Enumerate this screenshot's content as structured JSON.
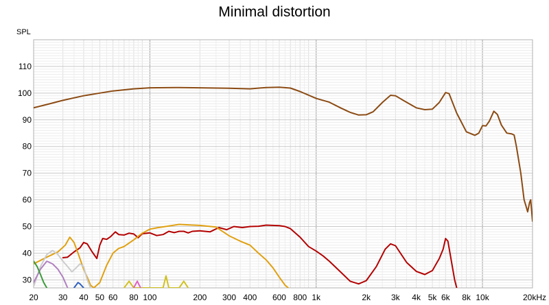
{
  "chart_data": {
    "type": "line",
    "title": "Minimal distortion",
    "ylabel": "SPL",
    "xscale": "log",
    "xlim": [
      20,
      20000
    ],
    "ylim": [
      27,
      120
    ],
    "x_ticks": [
      {
        "v": 20,
        "label": "20"
      },
      {
        "v": 30,
        "label": "30"
      },
      {
        "v": 40,
        "label": "40"
      },
      {
        "v": 50,
        "label": "50"
      },
      {
        "v": 60,
        "label": "60"
      },
      {
        "v": 80,
        "label": "80"
      },
      {
        "v": 100,
        "label": "100"
      },
      {
        "v": 200,
        "label": "200"
      },
      {
        "v": 300,
        "label": "300"
      },
      {
        "v": 400,
        "label": "400"
      },
      {
        "v": 600,
        "label": "600"
      },
      {
        "v": 800,
        "label": "800"
      },
      {
        "v": 1000,
        "label": "1k"
      },
      {
        "v": 2000,
        "label": "2k"
      },
      {
        "v": 3000,
        "label": "3k"
      },
      {
        "v": 4000,
        "label": "4k"
      },
      {
        "v": 5000,
        "label": "5k"
      },
      {
        "v": 6000,
        "label": "6k"
      },
      {
        "v": 8000,
        "label": "8k"
      },
      {
        "v": 10000,
        "label": "10k"
      },
      {
        "v": 20000,
        "label": "20kHz"
      }
    ],
    "y_ticks": [
      30,
      40,
      50,
      60,
      70,
      80,
      90,
      100,
      110
    ],
    "grid": true,
    "series": [
      {
        "color": "#8b4a12",
        "points": [
          [
            20,
            94.5
          ],
          [
            25,
            96
          ],
          [
            30,
            97.3
          ],
          [
            40,
            99
          ],
          [
            50,
            100
          ],
          [
            60,
            100.8
          ],
          [
            80,
            101.6
          ],
          [
            100,
            102
          ],
          [
            150,
            102.1
          ],
          [
            200,
            102
          ],
          [
            300,
            101.8
          ],
          [
            400,
            101.6
          ],
          [
            500,
            102.1
          ],
          [
            600,
            102.2
          ],
          [
            700,
            101.9
          ],
          [
            800,
            100.6
          ],
          [
            1000,
            98
          ],
          [
            1200,
            96.6
          ],
          [
            1400,
            94.5
          ],
          [
            1600,
            92.8
          ],
          [
            1800,
            91.8
          ],
          [
            2000,
            91.9
          ],
          [
            2200,
            93
          ],
          [
            2500,
            96.5
          ],
          [
            2800,
            99.2
          ],
          [
            3000,
            99
          ],
          [
            3400,
            97
          ],
          [
            4000,
            94.5
          ],
          [
            4500,
            93.8
          ],
          [
            5000,
            94
          ],
          [
            5500,
            96.5
          ],
          [
            6000,
            100.2
          ],
          [
            6300,
            99.8
          ],
          [
            7000,
            92.5
          ],
          [
            8000,
            85.5
          ],
          [
            9000,
            84.2
          ],
          [
            9500,
            85
          ],
          [
            10000,
            87.8
          ],
          [
            10500,
            87.7
          ],
          [
            11000,
            89.5
          ],
          [
            11700,
            93.2
          ],
          [
            12300,
            92
          ],
          [
            13000,
            88
          ],
          [
            14000,
            85
          ],
          [
            15000,
            84.7
          ],
          [
            15500,
            84.3
          ],
          [
            16000,
            80
          ],
          [
            17000,
            70
          ],
          [
            17800,
            60
          ],
          [
            18200,
            58
          ],
          [
            18700,
            55.5
          ],
          [
            19200,
            59
          ],
          [
            19500,
            60
          ],
          [
            20000,
            52
          ]
        ]
      },
      {
        "color": "#b30000",
        "points": [
          [
            30,
            38.3
          ],
          [
            32,
            38.5
          ],
          [
            35,
            40.5
          ],
          [
            38,
            42
          ],
          [
            40,
            44
          ],
          [
            42,
            43.5
          ],
          [
            45,
            40.5
          ],
          [
            48,
            38
          ],
          [
            50,
            43
          ],
          [
            52,
            45.5
          ],
          [
            55,
            45.2
          ],
          [
            58,
            46.2
          ],
          [
            62,
            48
          ],
          [
            65,
            47
          ],
          [
            70,
            46.8
          ],
          [
            75,
            47.5
          ],
          [
            80,
            47.2
          ],
          [
            85,
            45.8
          ],
          [
            90,
            47.3
          ],
          [
            100,
            47.6
          ],
          [
            110,
            46.6
          ],
          [
            120,
            47
          ],
          [
            130,
            48.2
          ],
          [
            140,
            47.7
          ],
          [
            150,
            48.2
          ],
          [
            160,
            48.2
          ],
          [
            170,
            47.6
          ],
          [
            180,
            48.2
          ],
          [
            200,
            48.4
          ],
          [
            230,
            48
          ],
          [
            260,
            49.6
          ],
          [
            290,
            48.8
          ],
          [
            320,
            50
          ],
          [
            360,
            49.6
          ],
          [
            400,
            50
          ],
          [
            450,
            50.1
          ],
          [
            500,
            50.5
          ],
          [
            600,
            50.3
          ],
          [
            650,
            50
          ],
          [
            700,
            49.2
          ],
          [
            800,
            46
          ],
          [
            900,
            42.5
          ],
          [
            1000,
            40.8
          ],
          [
            1100,
            39
          ],
          [
            1200,
            37
          ],
          [
            1400,
            33
          ],
          [
            1600,
            29.5
          ],
          [
            1800,
            28.5
          ],
          [
            2000,
            29.7
          ],
          [
            2300,
            35
          ],
          [
            2600,
            41.5
          ],
          [
            2800,
            43.5
          ],
          [
            3000,
            42.8
          ],
          [
            3500,
            36.5
          ],
          [
            4000,
            33.2
          ],
          [
            4500,
            32
          ],
          [
            5000,
            33.5
          ],
          [
            5500,
            38
          ],
          [
            5800,
            41.5
          ],
          [
            6000,
            45.5
          ],
          [
            6200,
            44.5
          ],
          [
            6800,
            30
          ],
          [
            7000,
            27
          ]
        ]
      },
      {
        "color": "#e0a010",
        "points": [
          [
            20,
            36
          ],
          [
            24,
            38.5
          ],
          [
            28,
            40.5
          ],
          [
            31,
            43
          ],
          [
            33,
            46
          ],
          [
            35,
            44
          ],
          [
            37,
            40
          ],
          [
            40,
            34
          ],
          [
            42,
            31
          ],
          [
            44,
            28
          ],
          [
            46,
            27
          ],
          [
            50,
            29
          ],
          [
            55,
            35.5
          ],
          [
            60,
            40
          ],
          [
            65,
            41.8
          ],
          [
            70,
            42.5
          ],
          [
            80,
            45
          ],
          [
            90,
            47.5
          ],
          [
            100,
            49
          ],
          [
            110,
            49.5
          ],
          [
            130,
            50.2
          ],
          [
            150,
            50.8
          ],
          [
            170,
            50.6
          ],
          [
            200,
            50.4
          ],
          [
            250,
            49.8
          ],
          [
            300,
            46.5
          ],
          [
            350,
            44.5
          ],
          [
            400,
            43
          ],
          [
            450,
            40
          ],
          [
            500,
            37.5
          ],
          [
            550,
            34.5
          ],
          [
            600,
            31
          ],
          [
            650,
            28
          ],
          [
            680,
            27
          ]
        ]
      },
      {
        "color": "#cccccc",
        "points": [
          [
            20,
            27.5
          ],
          [
            22,
            35
          ],
          [
            24,
            39.5
          ],
          [
            26,
            41
          ],
          [
            28,
            39.5
          ],
          [
            30,
            37
          ],
          [
            32,
            35
          ],
          [
            34,
            33
          ],
          [
            36,
            34.5
          ],
          [
            38,
            36
          ],
          [
            40,
            35
          ],
          [
            42,
            30
          ],
          [
            44,
            27
          ]
        ]
      },
      {
        "color": "#b080c0",
        "points": [
          [
            20,
            29
          ],
          [
            22,
            34
          ],
          [
            24,
            37
          ],
          [
            26,
            36
          ],
          [
            28,
            34
          ],
          [
            30,
            31
          ],
          [
            31,
            29
          ],
          [
            32,
            27
          ]
        ]
      },
      {
        "color": "#3a9a3a",
        "points": [
          [
            20,
            37
          ],
          [
            21,
            35
          ],
          [
            22,
            32
          ],
          [
            23,
            29
          ],
          [
            24,
            27
          ]
        ]
      },
      {
        "color": "#3060c0",
        "points": [
          [
            35,
            27
          ],
          [
            37,
            29
          ],
          [
            38,
            28.5
          ],
          [
            40,
            27
          ]
        ]
      },
      {
        "color": "#d0c020",
        "points": [
          [
            70,
            27
          ],
          [
            75,
            29.5
          ],
          [
            80,
            27
          ],
          [
            120,
            27
          ],
          [
            125,
            31.5
          ],
          [
            130,
            27
          ],
          [
            150,
            27
          ],
          [
            160,
            29.5
          ],
          [
            170,
            27
          ]
        ]
      },
      {
        "color": "#e060c0",
        "points": [
          [
            80,
            27
          ],
          [
            84,
            29.5
          ],
          [
            88,
            27
          ]
        ]
      }
    ]
  }
}
